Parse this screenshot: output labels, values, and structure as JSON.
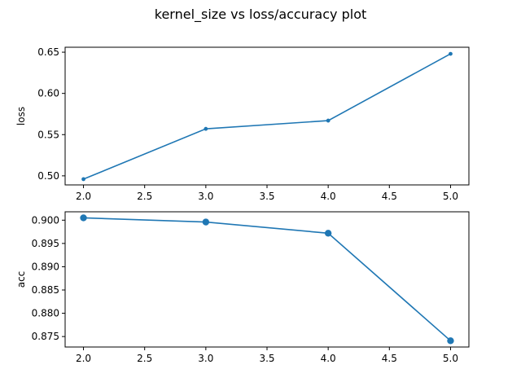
{
  "figure": {
    "title": "kernel_size vs loss/accuracy plot"
  },
  "chart_data": [
    {
      "type": "line",
      "title": "",
      "xlabel": "",
      "ylabel": "loss",
      "x": [
        2.0,
        3.0,
        4.0,
        5.0
      ],
      "series": [
        {
          "values": [
            0.496,
            0.557,
            0.567,
            0.648
          ],
          "color": "#1f77b4",
          "marker": "point"
        }
      ],
      "xlim": [
        1.85,
        5.15
      ],
      "ylim": [
        0.489,
        0.656
      ],
      "xticks": [
        "2.0",
        "2.5",
        "3.0",
        "3.5",
        "4.0",
        "4.5",
        "5.0"
      ],
      "yticks": [
        "0.50",
        "0.55",
        "0.60",
        "0.65"
      ],
      "grid": false
    },
    {
      "type": "line",
      "title": "",
      "xlabel": "",
      "ylabel": "acc",
      "x": [
        2.0,
        3.0,
        4.0,
        5.0
      ],
      "series": [
        {
          "values": [
            0.9005,
            0.8996,
            0.8972,
            0.8741
          ],
          "color": "#1f77b4",
          "marker": "circle"
        }
      ],
      "xlim": [
        1.85,
        5.15
      ],
      "ylim": [
        0.87275,
        0.9018
      ],
      "xticks": [
        "2.0",
        "2.5",
        "3.0",
        "3.5",
        "4.0",
        "4.5",
        "5.0"
      ],
      "yticks": [
        "0.875",
        "0.880",
        "0.885",
        "0.890",
        "0.895",
        "0.900"
      ],
      "grid": false
    }
  ]
}
